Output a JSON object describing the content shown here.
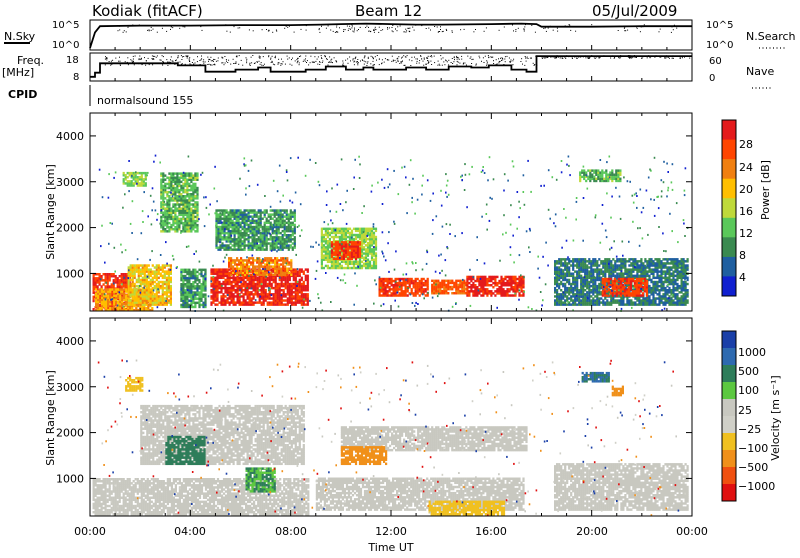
{
  "header": {
    "station": "Kodiak (fitACF)",
    "beam": "Beam 12",
    "date": "05/Jul/2009"
  },
  "summary": {
    "nsky_label": "N.Sky",
    "nsky_tick_high": "10^5",
    "nsky_tick_low": "10^0",
    "nsearch_label": "N.Search",
    "nsearch_tick_high": "10^5",
    "nsearch_tick_low": "10^0",
    "freq_label_line1": "Freq.",
    "freq_label_line2": "[MHz]",
    "freq_ticks": [
      "18",
      "8"
    ],
    "nave_label": "Nave",
    "nave_ticks": [
      "60",
      "0"
    ],
    "cpid_label": "CPID",
    "cpid_value": "normalsound 155"
  },
  "power_panel": {
    "ylabel": "Slant Range [km]",
    "yticks": [
      "4000",
      "3000",
      "2000",
      "1000"
    ],
    "colorbar_label": "Power [dB]",
    "colorbar_ticks": [
      "28",
      "24",
      "20",
      "16",
      "12",
      "8",
      "4"
    ],
    "colors": [
      "#e41a1c",
      "#ff4500",
      "#f07f10",
      "#ffbf00",
      "#bfd93a",
      "#5ac85a",
      "#3a8a50",
      "#1f5fa0",
      "#1020d0"
    ]
  },
  "velocity_panel": {
    "ylabel": "Slant Range [km]",
    "yticks": [
      "4000",
      "3000",
      "2000",
      "1000"
    ],
    "colorbar_label": "Velocity [m s⁻¹]",
    "colorbar_ticks": [
      "1000",
      "500",
      "100",
      "25",
      "−25",
      "−100",
      "−500",
      "−1000"
    ],
    "colors": [
      "#1a3fa8",
      "#2e6ab0",
      "#2e7d5a",
      "#5cc840",
      "#c8c8c0",
      "#d0d0c8",
      "#f0c020",
      "#f0901a",
      "#f05010",
      "#e01010"
    ]
  },
  "xaxis": {
    "ticks": [
      "00:00",
      "04:00",
      "08:00",
      "12:00",
      "16:00",
      "20:00",
      "00:00"
    ],
    "label": "Time UT"
  },
  "chart_data": [
    {
      "type": "line",
      "title": "Kodiak (fitACF)",
      "x_unit": "hours UT",
      "xlim": [
        0,
        24
      ],
      "series": [
        {
          "name": "N.Sky",
          "x": [
            0,
            0.2,
            0.4,
            2,
            4,
            6,
            8,
            9.2,
            10,
            11,
            12,
            13,
            14,
            16,
            17.2,
            17.8,
            18,
            20,
            22,
            24
          ],
          "values": [
            0,
            3,
            4.2,
            4.3,
            4.3,
            4.4,
            4.4,
            4.5,
            4.6,
            4.7,
            4.6,
            4.5,
            4.5,
            4.6,
            4.7,
            4.6,
            4.1,
            4.1,
            4.2,
            4.2
          ]
        },
        {
          "name": "Freq. [MHz]",
          "x": [
            0,
            0.2,
            0.4,
            3,
            3.5,
            4.6,
            5.8,
            6.7,
            7.2,
            8.6,
            9.4,
            10.2,
            10.9,
            11.3,
            12.6,
            13.4,
            14.3,
            15.2,
            15.9,
            16.8,
            17.4,
            17.8,
            24
          ],
          "values": [
            8,
            10,
            14.5,
            14.5,
            13.5,
            10.5,
            11.5,
            12.5,
            10.5,
            11.5,
            13,
            11.5,
            12.5,
            11.5,
            12.5,
            11.5,
            13,
            12.5,
            13.5,
            11.5,
            10.5,
            18,
            18
          ]
        }
      ]
    },
    {
      "type": "heatmap",
      "title": "Power [dB]",
      "xlabel": "Time UT",
      "ylabel": "Slant Range [km]",
      "xlim": [
        0,
        24
      ],
      "ylim": [
        180,
        4500
      ],
      "zlim": [
        0,
        30
      ],
      "blocks": [
        {
          "t0": 0.1,
          "t1": 1.6,
          "r0": 200,
          "r1": 1000,
          "v": 27
        },
        {
          "t0": 0.2,
          "t1": 2.5,
          "r0": 180,
          "r1": 650,
          "v": 20
        },
        {
          "t0": 1.5,
          "t1": 3.2,
          "r0": 300,
          "r1": 1200,
          "v": 18
        },
        {
          "t0": 3.6,
          "t1": 4.6,
          "r0": 250,
          "r1": 1100,
          "v": 10
        },
        {
          "t0": 4.8,
          "t1": 8.7,
          "r0": 300,
          "r1": 1100,
          "v": 28
        },
        {
          "t0": 5.5,
          "t1": 8.0,
          "r0": 950,
          "r1": 1350,
          "v": 22
        },
        {
          "t0": 9.2,
          "t1": 11.4,
          "r0": 1100,
          "r1": 2000,
          "v": 14
        },
        {
          "t0": 9.6,
          "t1": 10.8,
          "r0": 1300,
          "r1": 1700,
          "v": 26
        },
        {
          "t0": 11.5,
          "t1": 13.5,
          "r0": 500,
          "r1": 900,
          "v": 26
        },
        {
          "t0": 13.6,
          "t1": 15.0,
          "r0": 550,
          "r1": 850,
          "v": 24
        },
        {
          "t0": 15.0,
          "t1": 17.3,
          "r0": 500,
          "r1": 950,
          "v": 28
        },
        {
          "t0": 18.5,
          "t1": 23.8,
          "r0": 300,
          "r1": 1300,
          "v": 8
        },
        {
          "t0": 20.4,
          "t1": 22.2,
          "r0": 500,
          "r1": 900,
          "v": 26
        },
        {
          "t0": 2.8,
          "t1": 4.3,
          "r0": 1900,
          "r1": 3200,
          "v": 12
        },
        {
          "t0": 5.0,
          "t1": 8.2,
          "r0": 1500,
          "r1": 2400,
          "v": 10
        },
        {
          "t0": 1.3,
          "t1": 2.2,
          "r0": 2900,
          "r1": 3200,
          "v": 14
        },
        {
          "t0": 19.5,
          "t1": 21.1,
          "r0": 3000,
          "r1": 3250,
          "v": 12
        }
      ]
    },
    {
      "type": "heatmap",
      "title": "Velocity [m s-1]",
      "xlabel": "Time UT",
      "ylabel": "Slant Range [km]",
      "xlim": [
        0,
        24
      ],
      "ylim": [
        180,
        4500
      ],
      "zlim": [
        -1000,
        1000
      ],
      "blocks": [
        {
          "t0": 0.1,
          "t1": 8.7,
          "r0": 200,
          "r1": 1000,
          "v": 0
        },
        {
          "t0": 9.0,
          "t1": 17.3,
          "r0": 300,
          "r1": 1000,
          "v": 0
        },
        {
          "t0": 2.0,
          "t1": 8.5,
          "r0": 1300,
          "r1": 2600,
          "v": 0
        },
        {
          "t0": 10.0,
          "t1": 17.4,
          "r0": 1600,
          "r1": 2100,
          "v": 0
        },
        {
          "t0": 18.5,
          "t1": 23.8,
          "r0": 300,
          "r1": 1300,
          "v": 0
        },
        {
          "t0": 13.5,
          "t1": 16.5,
          "r0": 200,
          "r1": 500,
          "v": -120
        },
        {
          "t0": 10.0,
          "t1": 11.8,
          "r0": 1300,
          "r1": 1700,
          "v": -400
        },
        {
          "t0": 3.0,
          "t1": 4.6,
          "r0": 1300,
          "r1": 1900,
          "v": 200
        },
        {
          "t0": 6.2,
          "t1": 7.4,
          "r0": 700,
          "r1": 1200,
          "v": 60
        },
        {
          "t0": 1.4,
          "t1": 2.1,
          "r0": 2900,
          "r1": 3200,
          "v": -120
        },
        {
          "t0": 19.6,
          "t1": 20.7,
          "r0": 3100,
          "r1": 3300,
          "v": 300
        },
        {
          "t0": 20.8,
          "t1": 21.2,
          "r0": 2800,
          "r1": 3000,
          "v": -400
        }
      ]
    }
  ]
}
